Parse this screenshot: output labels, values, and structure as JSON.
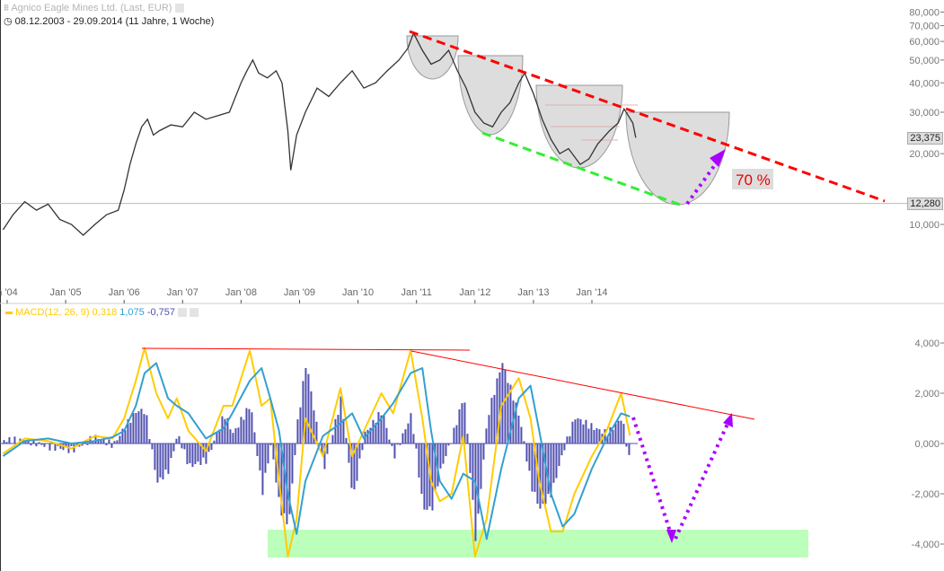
{
  "header": {
    "title": "Agnico Eagle Mines Ltd. (Last, EUR)",
    "range": "08.12.2003 - 29.09.2014 (11 Jahre, 1 Woche)",
    "title_icon": "chart-icon",
    "range_icon": "clock-icon"
  },
  "chart_data": [
    {
      "type": "line",
      "title": "Agnico Eagle Mines Ltd. (Last, EUR)",
      "yscale": "log",
      "ylim": [
        7500,
        90000
      ],
      "x_ticks": [
        "n '04",
        "Jan '05",
        "Jan '06",
        "Jan '07",
        "Jan '08",
        "Jan '09",
        "Jan '10",
        "Jan '11",
        "Jan '12",
        "Jan '13",
        "Jan '14"
      ],
      "y_ticks": [
        "10,000",
        "20,000",
        "30,000",
        "40,000",
        "50,000",
        "60,000",
        "70,000",
        "80,000"
      ],
      "y_tick_values": [
        10000,
        20000,
        30000,
        40000,
        50000,
        60000,
        70000,
        80000
      ],
      "last_value_label": "23,375",
      "reference_label": "12,280",
      "reference_value": 12280,
      "annotation_text": "70 %",
      "colors": {
        "price": "#333333",
        "resistance": "#ff0000",
        "support": "#33ee33",
        "target_arrow": "#aa00ff",
        "bowl": "#dddddd"
      },
      "series": [
        {
          "x": [
            2003.93,
            2004.1,
            2004.3,
            2004.5,
            2004.7,
            2004.9,
            2005.1,
            2005.3,
            2005.5,
            2005.7,
            2005.9,
            2006.0,
            2006.1,
            2006.2,
            2006.3,
            2006.4,
            2006.5,
            2006.6,
            2006.8,
            2007.0,
            2007.2,
            2007.4,
            2007.6,
            2007.8,
            2008.0,
            2008.1,
            2008.2,
            2008.3,
            2008.45,
            2008.6,
            2008.7,
            2008.8,
            2008.85,
            2008.95,
            2009.1,
            2009.3,
            2009.5,
            2009.7,
            2009.9,
            2010.1,
            2010.3,
            2010.5,
            2010.7,
            2010.85,
            2010.95,
            2011.1,
            2011.25,
            2011.4,
            2011.55,
            2011.7,
            2011.85,
            2012.0,
            2012.15,
            2012.3,
            2012.45,
            2012.6,
            2012.75,
            2012.85,
            2013.0,
            2013.15,
            2013.3,
            2013.45,
            2013.6,
            2013.8,
            2013.95,
            2014.1,
            2014.3,
            2014.45,
            2014.55,
            2014.7,
            2014.75
          ],
          "values": [
            9500,
            11000,
            12500,
            11500,
            12200,
            10500,
            10000,
            9000,
            10000,
            11000,
            11500,
            14000,
            18000,
            22000,
            26000,
            28000,
            24000,
            25000,
            26500,
            26000,
            30000,
            28000,
            29000,
            30000,
            40000,
            45000,
            50000,
            44000,
            42000,
            45000,
            40000,
            25000,
            17000,
            24000,
            30000,
            38000,
            35000,
            40000,
            45000,
            38000,
            40000,
            45000,
            50000,
            56000,
            65000,
            55000,
            48000,
            50000,
            55000,
            45000,
            38000,
            30000,
            27000,
            26000,
            30000,
            33000,
            40000,
            44000,
            36000,
            28000,
            23000,
            20000,
            21000,
            18000,
            19000,
            22000,
            25000,
            27000,
            31000,
            27000,
            23375
          ]
        }
      ]
    },
    {
      "type": "line",
      "title": "MACD(12, 26, 9)",
      "ylim": [
        -4.6,
        4.3
      ],
      "y_ticks": [
        "4,000",
        "2,000",
        "0,000",
        "-2,000",
        "-4,000"
      ],
      "y_tick_values": [
        4,
        2,
        0,
        -2,
        -4
      ],
      "legend": {
        "label": "MACD(12, 26, 9)",
        "macd": "0,318",
        "signal": "1,075",
        "histogram": "-0,757"
      },
      "colors": {
        "macd": "#ffcc00",
        "signal": "#33a0d0",
        "histogram": "#5050b0",
        "trend": "#ff0000",
        "arrow": "#aa00ff",
        "zone": "#bbffbb"
      },
      "x": [
        2003.93,
        2004.3,
        2004.7,
        2005.1,
        2005.5,
        2005.8,
        2006.0,
        2006.2,
        2006.35,
        2006.55,
        2006.75,
        2006.9,
        2007.1,
        2007.4,
        2007.7,
        2007.85,
        2008.15,
        2008.35,
        2008.5,
        2008.65,
        2008.8,
        2008.95,
        2009.1,
        2009.4,
        2009.7,
        2009.9,
        2010.1,
        2010.4,
        2010.6,
        2010.9,
        2011.1,
        2011.25,
        2011.4,
        2011.6,
        2011.8,
        2012.0,
        2012.2,
        2012.45,
        2012.75,
        2012.95,
        2013.1,
        2013.3,
        2013.5,
        2013.7,
        2014.0,
        2014.25,
        2014.5,
        2014.65
      ],
      "series": [
        {
          "name": "MACD",
          "values": [
            -0.4,
            0.2,
            0.1,
            -0.2,
            0.3,
            0.2,
            1.0,
            2.5,
            3.8,
            2.0,
            1.0,
            1.8,
            0.5,
            -0.3,
            1.5,
            1.5,
            3.7,
            1.5,
            1.8,
            -1.5,
            -4.5,
            -3.0,
            1.0,
            -0.5,
            2.2,
            -0.5,
            0.5,
            2.0,
            1.2,
            3.7,
            1.0,
            -1.5,
            -2.3,
            -2.0,
            0.3,
            -4.5,
            -3.0,
            1.5,
            2.6,
            1.0,
            -1.5,
            -3.5,
            -3.5,
            -2.0,
            -0.5,
            0.5,
            2.0,
            0.318
          ]
        },
        {
          "name": "Signal",
          "values": [
            -0.5,
            0.1,
            0.2,
            0,
            0.1,
            0.25,
            0.5,
            1.5,
            2.8,
            3.2,
            1.8,
            1.5,
            1.2,
            0.2,
            0.6,
            1.2,
            2.5,
            3.0,
            1.8,
            0.5,
            -2.0,
            -3.6,
            -1.5,
            0.3,
            0.8,
            1.2,
            0.2,
            1.0,
            1.6,
            2.8,
            3.0,
            0.5,
            -1.5,
            -2.2,
            -1.2,
            -1.5,
            -3.8,
            -1.0,
            1.8,
            2.3,
            0.5,
            -2.0,
            -3.3,
            -2.8,
            -1.0,
            0.2,
            1.2,
            1.075
          ]
        }
      ]
    }
  ]
}
